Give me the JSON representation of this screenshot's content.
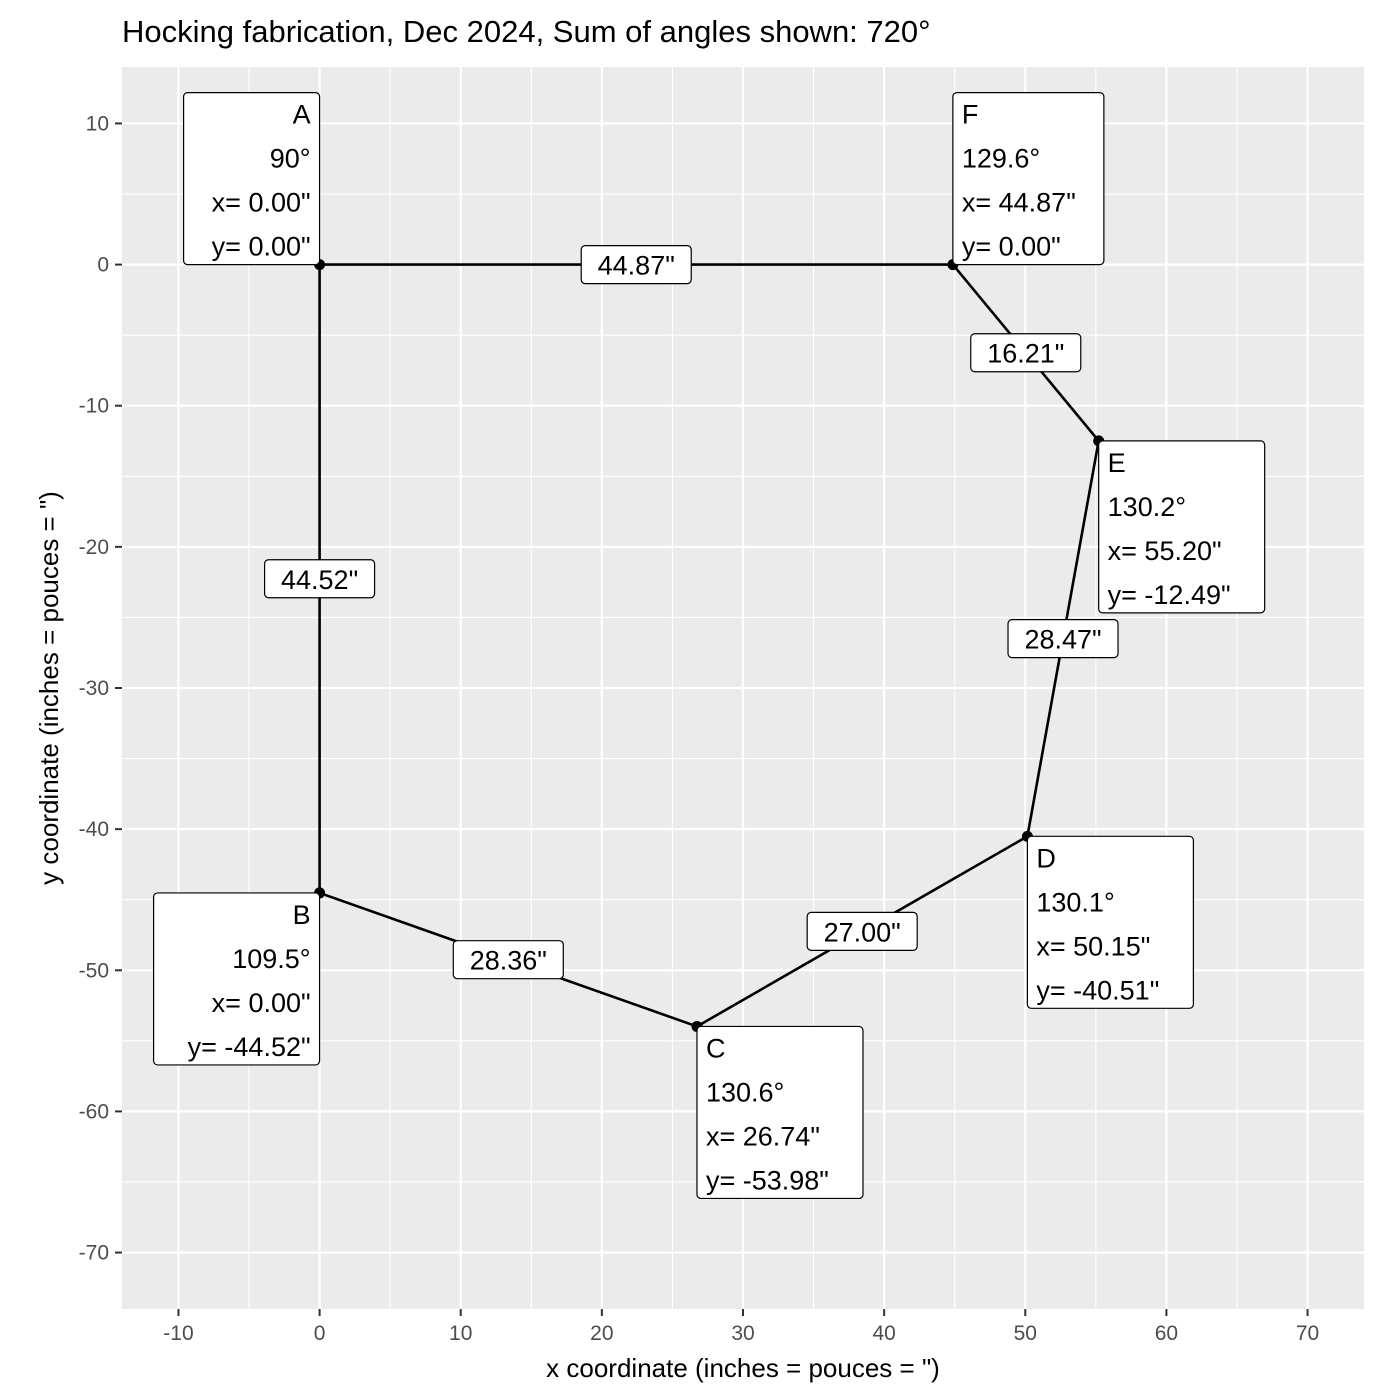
{
  "chart_data": {
    "type": "scatter",
    "title": "Hocking fabrication, Dec 2024, Sum of angles shown: 720°",
    "xlabel": "x coordinate (inches = pouces = \")",
    "ylabel": "y coordinate (inches = pouces = \")",
    "xlim": [
      -14,
      74
    ],
    "ylim": [
      -74,
      14
    ],
    "x_ticks": [
      -10,
      0,
      10,
      20,
      30,
      40,
      50,
      60,
      70
    ],
    "y_ticks": [
      10,
      0,
      -10,
      -20,
      -30,
      -40,
      -50,
      -60,
      -70
    ],
    "x_tick_labels": [
      "-10",
      "0",
      "10",
      "20",
      "30",
      "40",
      "50",
      "60",
      "70"
    ],
    "y_tick_labels": [
      "10",
      "0",
      "-10",
      "-20",
      "-30",
      "-40",
      "-50",
      "-60",
      "-70"
    ],
    "grid": true,
    "colors": {
      "panel": "#ebebeb",
      "grid": "#ffffff",
      "line": "#000000"
    },
    "points": [
      {
        "label": "A",
        "angle": "90°",
        "x": 0.0,
        "y": 0.0,
        "x_text": "x= 0.00\"",
        "y_text": "y= 0.00\""
      },
      {
        "label": "B",
        "angle": "109.5°",
        "x": 0.0,
        "y": -44.52,
        "x_text": "x= 0.00\"",
        "y_text": "y= -44.52\""
      },
      {
        "label": "C",
        "angle": "130.6°",
        "x": 26.74,
        "y": -53.98,
        "x_text": "x= 26.74\"",
        "y_text": "y= -53.98\""
      },
      {
        "label": "D",
        "angle": "130.1°",
        "x": 50.15,
        "y": -40.51,
        "x_text": "x= 50.15\"",
        "y_text": "y= -40.51\""
      },
      {
        "label": "E",
        "angle": "130.2°",
        "x": 55.2,
        "y": -12.49,
        "x_text": "x= 55.20\"",
        "y_text": "y= -12.49\""
      },
      {
        "label": "F",
        "angle": "129.6°",
        "x": 44.87,
        "y": 0.0,
        "x_text": "x= 44.87\"",
        "y_text": "y= 0.00\""
      }
    ],
    "segments": [
      {
        "from": "A",
        "to": "B",
        "label": "44.52\""
      },
      {
        "from": "B",
        "to": "C",
        "label": "28.36\""
      },
      {
        "from": "C",
        "to": "D",
        "label": "27.00\""
      },
      {
        "from": "D",
        "to": "E",
        "label": "28.47\""
      },
      {
        "from": "E",
        "to": "F",
        "label": "16.21\""
      },
      {
        "from": "F",
        "to": "A",
        "label": "44.87\""
      }
    ]
  }
}
